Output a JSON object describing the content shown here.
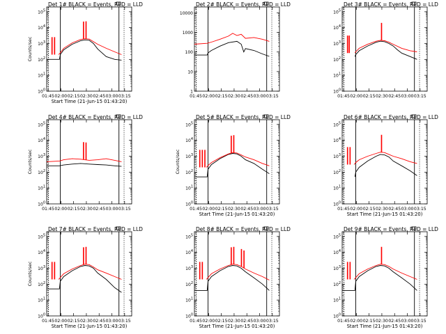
{
  "figure": {
    "panel_title_suffix": "BLACK = Events, RED = LLD",
    "xlabel": "Start Time (21-Jun-15 01:43:20)",
    "ylabel": "Counts/sec",
    "ylabel_alt": "Counts/sec",
    "x_ticks": [
      "01:45",
      "02:00",
      "02:15",
      "02:30",
      "02:45",
      "03:00",
      "03:15"
    ],
    "y_ticks_log8": [
      "10^0",
      "10^1",
      "10^2",
      "10^3",
      "10^4",
      "10^5"
    ],
    "y_ticks_det2": [
      "1",
      "10",
      "100",
      "1000",
      "10000"
    ],
    "colors": {
      "events": "#000000",
      "lld": "#ff0000"
    }
  },
  "chart_data": [
    {
      "type": "line",
      "title": "Det 1# BLACK = Events, RED = LLD",
      "xlabel": "Start Time (21-Jun-15 01:43:20)",
      "ylabel": "Counts/sec",
      "yscale": "log",
      "ylim": [
        1,
        200000
      ],
      "xlim_minutes": [
        0,
        100
      ],
      "spikes": [
        6,
        9,
        43,
        46
      ],
      "series": [
        {
          "name": "Events",
          "color": "#000000",
          "x_minutes": [
            0,
            15,
            16,
            20,
            30,
            40,
            45,
            50,
            55,
            60,
            70,
            80,
            88
          ],
          "values": [
            100,
            100,
            200,
            400,
            900,
            1500,
            1700,
            1600,
            1000,
            450,
            150,
            100,
            90
          ]
        },
        {
          "name": "LLD",
          "color": "#ff0000",
          "x_minutes": [
            14,
            16,
            20,
            30,
            40,
            45,
            50,
            55,
            60,
            70,
            80,
            88
          ],
          "values": [
            200,
            260,
            500,
            1100,
            1800,
            2000,
            1900,
            1300,
            900,
            500,
            300,
            200
          ]
        }
      ]
    },
    {
      "type": "line",
      "title": "Det 2# BLACK = Events, RED = LLD",
      "xlabel": "",
      "ylabel": "Counts/sec",
      "yscale": "log",
      "ylim": [
        1,
        20000
      ],
      "xlim_minutes": [
        0,
        100
      ],
      "spikes": [],
      "series": [
        {
          "name": "Events",
          "color": "#000000",
          "x_minutes": [
            0,
            15,
            16,
            20,
            30,
            40,
            50,
            55,
            58,
            60,
            70,
            80,
            88
          ],
          "values": [
            70,
            70,
            90,
            120,
            200,
            300,
            350,
            250,
            100,
            150,
            120,
            80,
            60
          ]
        },
        {
          "name": "LLD",
          "color": "#ff0000",
          "x_minutes": [
            0,
            15,
            20,
            30,
            40,
            45,
            50,
            55,
            60,
            70,
            80,
            88
          ],
          "values": [
            250,
            280,
            320,
            450,
            650,
            900,
            700,
            800,
            500,
            550,
            450,
            350
          ]
        }
      ]
    },
    {
      "type": "line",
      "title": "Det 3# BLACK = Events, RED = LLD",
      "xlabel": "",
      "ylabel": "Counts/sec",
      "yscale": "log",
      "ylim": [
        1,
        200000
      ],
      "xlim_minutes": [
        0,
        100
      ],
      "spikes": [
        6,
        8,
        46
      ],
      "series": [
        {
          "name": "Events",
          "color": "#000000",
          "x_minutes": [
            15,
            16,
            20,
            30,
            40,
            45,
            50,
            55,
            60,
            65,
            70,
            80,
            88
          ],
          "values": [
            150,
            200,
            350,
            700,
            1200,
            1400,
            1300,
            1000,
            700,
            400,
            250,
            150,
            100
          ]
        },
        {
          "name": "LLD",
          "color": "#ff0000",
          "x_minutes": [
            15,
            16,
            20,
            30,
            40,
            45,
            50,
            55,
            60,
            70,
            80,
            88
          ],
          "values": [
            250,
            300,
            500,
            900,
            1400,
            1600,
            1500,
            1200,
            900,
            500,
            350,
            300
          ]
        }
      ]
    },
    {
      "type": "line",
      "title": "Det 4# BLACK = Events, RED = LLD",
      "xlabel": "",
      "ylabel": "Counts/sec",
      "yscale": "log",
      "ylim": [
        1,
        200000
      ],
      "xlim_minutes": [
        0,
        100
      ],
      "spikes": [
        43,
        46
      ],
      "series": [
        {
          "name": "Events",
          "color": "#000000",
          "x_minutes": [
            0,
            15,
            20,
            30,
            40,
            50,
            60,
            70,
            80,
            88
          ],
          "values": [
            250,
            250,
            280,
            320,
            350,
            320,
            300,
            280,
            250,
            230
          ]
        },
        {
          "name": "LLD",
          "color": "#ff0000",
          "x_minutes": [
            0,
            15,
            20,
            30,
            40,
            50,
            60,
            70,
            80,
            88
          ],
          "values": [
            450,
            500,
            600,
            700,
            650,
            550,
            600,
            700,
            550,
            450
          ]
        }
      ]
    },
    {
      "type": "line",
      "title": "Det 5# BLACK = Events, RED = LLD",
      "xlabel": "Start Time (21-Jun-15 01:43:20)",
      "ylabel": "Counts/sec",
      "yscale": "log",
      "ylim": [
        1,
        200000
      ],
      "xlim_minutes": [
        0,
        100
      ],
      "spikes": [
        6,
        9,
        12,
        43,
        46
      ],
      "series": [
        {
          "name": "Events",
          "color": "#000000",
          "x_minutes": [
            0,
            15,
            16,
            20,
            30,
            40,
            45,
            50,
            55,
            60,
            70,
            80,
            88
          ],
          "values": [
            50,
            50,
            150,
            300,
            700,
            1300,
            1500,
            1400,
            1000,
            600,
            350,
            150,
            80
          ]
        },
        {
          "name": "LLD",
          "color": "#ff0000",
          "x_minutes": [
            14,
            16,
            20,
            30,
            40,
            45,
            50,
            55,
            60,
            70,
            80,
            88
          ],
          "values": [
            200,
            260,
            400,
            800,
            1400,
            1700,
            1600,
            1200,
            900,
            600,
            350,
            250
          ]
        }
      ]
    },
    {
      "type": "line",
      "title": "Det 6# BLACK = Events, RED = LLD",
      "xlabel": "Start Time (21-Jun-15 01:43:20)",
      "ylabel": "Counts/sec",
      "yscale": "log",
      "ylim": [
        1,
        200000
      ],
      "xlim_minutes": [
        0,
        100
      ],
      "spikes": [
        6,
        9,
        46
      ],
      "series": [
        {
          "name": "Events",
          "color": "#000000",
          "x_minutes": [
            15,
            16,
            20,
            30,
            40,
            45,
            50,
            55,
            60,
            70,
            80,
            88
          ],
          "values": [
            50,
            100,
            200,
            500,
            1000,
            1300,
            1200,
            900,
            500,
            250,
            120,
            60
          ]
        },
        {
          "name": "LLD",
          "color": "#ff0000",
          "x_minutes": [
            14,
            16,
            20,
            30,
            40,
            45,
            50,
            55,
            60,
            70,
            80,
            88
          ],
          "values": [
            300,
            400,
            600,
            1000,
            1500,
            1800,
            1700,
            1300,
            1000,
            700,
            450,
            350
          ]
        }
      ]
    },
    {
      "type": "line",
      "title": "Det 7# BLACK = Events, RED = LLD",
      "xlabel": "Start Time (21-Jun-15 01:43:20)",
      "ylabel": "Counts/sec",
      "yscale": "log",
      "ylim": [
        1,
        200000
      ],
      "xlim_minutes": [
        0,
        100
      ],
      "spikes": [
        6,
        9,
        43,
        46
      ],
      "series": [
        {
          "name": "Events",
          "color": "#000000",
          "x_minutes": [
            0,
            15,
            16,
            20,
            30,
            40,
            45,
            50,
            55,
            60,
            70,
            80,
            88
          ],
          "values": [
            50,
            50,
            150,
            300,
            700,
            1300,
            1500,
            1400,
            1000,
            500,
            200,
            60,
            30
          ]
        },
        {
          "name": "LLD",
          "color": "#ff0000",
          "x_minutes": [
            14,
            16,
            20,
            30,
            40,
            45,
            50,
            55,
            60,
            70,
            80,
            88
          ],
          "values": [
            200,
            260,
            450,
            900,
            1500,
            1800,
            1700,
            1200,
            800,
            500,
            300,
            200
          ]
        }
      ]
    },
    {
      "type": "line",
      "title": "Det 8# BLACK = Events, RED = LLD",
      "xlabel": "Start Time (21-Jun-15 01:43:20)",
      "ylabel": "Counts/sec",
      "yscale": "log",
      "ylim": [
        1,
        200000
      ],
      "xlim_minutes": [
        0,
        100
      ],
      "spikes": [
        6,
        9,
        43,
        46,
        55,
        58
      ],
      "series": [
        {
          "name": "Events",
          "color": "#000000",
          "x_minutes": [
            0,
            15,
            16,
            20,
            30,
            40,
            45,
            50,
            55,
            60,
            70,
            80,
            88
          ],
          "values": [
            40,
            40,
            150,
            300,
            700,
            1300,
            1500,
            1400,
            1000,
            600,
            250,
            100,
            40
          ]
        },
        {
          "name": "LLD",
          "color": "#ff0000",
          "x_minutes": [
            14,
            16,
            20,
            30,
            40,
            45,
            50,
            55,
            60,
            70,
            80,
            88
          ],
          "values": [
            200,
            260,
            450,
            900,
            1500,
            1800,
            1700,
            1300,
            900,
            500,
            300,
            180
          ]
        }
      ]
    },
    {
      "type": "line",
      "title": "Det 9# BLACK = Events, RED = LLD",
      "xlabel": "Start Time (21-Jun-15 01:43:20)",
      "ylabel": "Counts/sec",
      "yscale": "log",
      "ylim": [
        1,
        200000
      ],
      "xlim_minutes": [
        0,
        100
      ],
      "spikes": [
        6,
        9,
        46
      ],
      "series": [
        {
          "name": "Events",
          "color": "#000000",
          "x_minutes": [
            0,
            15,
            16,
            20,
            30,
            40,
            45,
            50,
            55,
            60,
            70,
            80,
            88
          ],
          "values": [
            40,
            40,
            150,
            300,
            700,
            1300,
            1500,
            1400,
            1000,
            600,
            250,
            100,
            40
          ]
        },
        {
          "name": "LLD",
          "color": "#ff0000",
          "x_minutes": [
            14,
            16,
            20,
            30,
            40,
            45,
            50,
            55,
            60,
            70,
            80,
            88
          ],
          "values": [
            200,
            260,
            450,
            900,
            1500,
            1800,
            1700,
            1300,
            900,
            500,
            300,
            200
          ]
        }
      ]
    }
  ]
}
